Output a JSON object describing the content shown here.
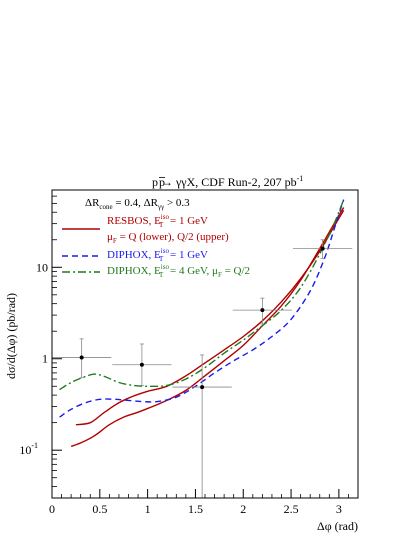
{
  "chart_data": {
    "type": "line",
    "title": "pp̄ → γγX, CDF Run-2, 207 pb⁻¹",
    "title_parts": {
      "main": "p",
      "bar": "p",
      "rest": " → γγX, CDF Run-2, 207 pb",
      "sup": "-1"
    },
    "xlabel": "Δφ (rad)",
    "ylabel": "dσ/d(Δφ) (pb/rad)",
    "xlim": [
      0,
      3.2
    ],
    "ylim": [
      0.03,
      70
    ],
    "yscale": "log",
    "x_ticks": [
      0,
      0.5,
      1,
      1.5,
      2,
      2.5,
      3
    ],
    "x_tick_labels": [
      "0",
      "0.5",
      "1",
      "1.5",
      "2",
      "2.5",
      "3"
    ],
    "y_ticks": [
      0.1,
      1,
      10
    ],
    "y_tick_labels": [
      {
        "base": "10",
        "sup": "-1"
      },
      {
        "base": "1",
        "sup": ""
      },
      {
        "base": "10",
        "sup": ""
      }
    ],
    "cuts": {
      "a": "ΔR",
      "a_sub": "cone",
      "b": " = 0.4, ΔR",
      "b_sub": "γγ",
      "c": " > 0.3"
    },
    "legend_position": "top-left",
    "legend": [
      {
        "key": "resbos",
        "l1": "RESBOS, E",
        "l1_sub": "T",
        "l1_sup": "iso",
        "l1_tail": " = 1 GeV",
        "l2": "μ",
        "l2_sub": "F",
        "l2_tail": " = Q (lower), Q/2 (upper)"
      },
      {
        "key": "diphox1",
        "l1": "DIPHOX, E",
        "l1_sub": "T",
        "l1_sup": "iso",
        "l1_tail": " = 1 GeV"
      },
      {
        "key": "diphox4",
        "l1": "DIPHOX, E",
        "l1_sub": "T",
        "l1_sup": "iso",
        "l1_tail": " = 4 GeV, μ",
        "l1_sub2": "F",
        "l1_tail2": " = Q/2"
      }
    ],
    "data_points": {
      "name": "CDF Run-2",
      "x": [
        0.31,
        0.94,
        1.57,
        2.2,
        2.83
      ],
      "x_err": [
        0.31,
        0.31,
        0.31,
        0.31,
        0.31
      ],
      "y": [
        1.03,
        0.86,
        0.49,
        3.4,
        16
      ],
      "y_lo": [
        0.62,
        0.51,
        0.03,
        2.4,
        12.5
      ],
      "y_hi": [
        1.65,
        1.45,
        1.1,
        4.6,
        20
      ]
    },
    "series": [
      {
        "name": "RESBOS, Q/2 (upper)",
        "legend_key": "resbos",
        "color": "#b00000",
        "dash": "solid",
        "x": [
          0.25,
          0.4,
          0.55,
          0.7,
          0.85,
          1.0,
          1.2,
          1.4,
          1.6,
          1.8,
          2.0,
          2.2,
          2.4,
          2.6,
          2.8,
          2.95,
          3.05
        ],
        "y": [
          0.19,
          0.2,
          0.26,
          0.33,
          0.39,
          0.44,
          0.5,
          0.65,
          0.9,
          1.25,
          1.75,
          2.6,
          4.2,
          7.5,
          15,
          28,
          42
        ]
      },
      {
        "name": "RESBOS, Q (lower)",
        "legend_key": "resbos",
        "color": "#b00000",
        "dash": "solid",
        "x": [
          0.2,
          0.3,
          0.45,
          0.6,
          0.75,
          0.9,
          1.05,
          1.2,
          1.4,
          1.6,
          1.8,
          2.0,
          2.2,
          2.4,
          2.6,
          2.8,
          2.95,
          3.05
        ],
        "y": [
          0.11,
          0.12,
          0.145,
          0.19,
          0.23,
          0.26,
          0.3,
          0.35,
          0.45,
          0.65,
          0.95,
          1.4,
          2.3,
          3.8,
          7.2,
          16,
          30,
          45
        ]
      },
      {
        "name": "DIPHOX, E_T^iso = 1 GeV",
        "legend_key": "diphox1",
        "color": "#1a1aee",
        "dash": "6,4",
        "x": [
          0.08,
          0.2,
          0.35,
          0.5,
          0.65,
          0.8,
          0.95,
          1.1,
          1.3,
          1.5,
          1.7,
          1.9,
          2.1,
          2.3,
          2.5,
          2.7,
          2.85,
          2.95,
          3.05
        ],
        "y": [
          0.23,
          0.28,
          0.33,
          0.36,
          0.36,
          0.35,
          0.34,
          0.34,
          0.38,
          0.5,
          0.7,
          0.95,
          1.25,
          1.75,
          2.7,
          5.5,
          12.5,
          26,
          55
        ]
      },
      {
        "name": "DIPHOX, E_T^iso = 4 GeV, μ_F = Q/2",
        "legend_key": "diphox4",
        "color": "#1f7a1f",
        "dash": "8,3,2,3",
        "x": [
          0.08,
          0.2,
          0.35,
          0.45,
          0.55,
          0.7,
          0.85,
          1.0,
          1.2,
          1.4,
          1.6,
          1.8,
          2.0,
          2.2,
          2.4,
          2.6,
          2.8,
          2.95,
          3.05
        ],
        "y": [
          0.46,
          0.55,
          0.64,
          0.68,
          0.64,
          0.55,
          0.51,
          0.5,
          0.51,
          0.6,
          0.8,
          1.15,
          1.6,
          2.3,
          3.4,
          6.0,
          14,
          30,
          55
        ]
      }
    ]
  }
}
